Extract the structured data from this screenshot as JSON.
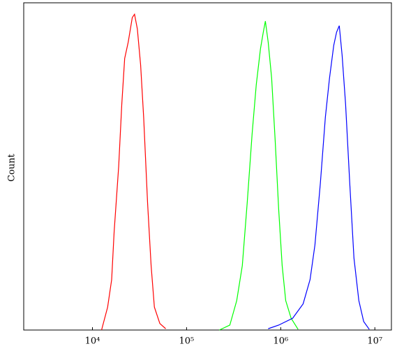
{
  "chart_data": {
    "type": "line",
    "y_label": "Count",
    "x_scale": "log",
    "xlim": [
      1862,
      15000000
    ],
    "ylim": [
      0,
      100
    ],
    "xticks": [
      {
        "value": 10000,
        "label": "10⁴"
      },
      {
        "value": 100000,
        "label": "10⁵"
      },
      {
        "value": 1000000,
        "label": "10⁶"
      },
      {
        "value": 10000000,
        "label": "10⁷"
      }
    ],
    "series": [
      {
        "color": "#ff0000",
        "x": [
          12500,
          14500,
          16000,
          17000,
          19000,
          20500,
          22000,
          24000,
          26500,
          28000,
          30000,
          32500,
          35000,
          38500,
          42000,
          45500,
          52000,
          60000
        ],
        "values": [
          0,
          7,
          15.4,
          30,
          50,
          69,
          83,
          88,
          95.5,
          96.5,
          92,
          81,
          65,
          39,
          19.7,
          7,
          2,
          0.4
        ]
      },
      {
        "color": "#00ff00",
        "x": [
          223000,
          288000,
          341000,
          391000,
          441000,
          497000,
          550000,
          610000,
          653000,
          687000,
          736000,
          801000,
          873000,
          951000,
          1036000,
          1130000,
          1290000,
          1530000
        ],
        "values": [
          0,
          1.5,
          9,
          19.7,
          39,
          60,
          75,
          86,
          91,
          94.4,
          88,
          77,
          58,
          37,
          19.7,
          9,
          3.6,
          0.2
        ]
      },
      {
        "color": "#0000ff",
        "x": [
          736000,
          951000,
          1340000,
          1730000,
          2050000,
          2310000,
          2640000,
          2980000,
          3300000,
          3660000,
          3920000,
          4190000,
          4490000,
          4890000,
          5410000,
          6000000,
          6760000,
          7610000,
          8730000
        ],
        "values": [
          0.4,
          1.5,
          3.6,
          8,
          15.4,
          26,
          45,
          65,
          77,
          87,
          91,
          93,
          84,
          69,
          45,
          22,
          9,
          2.6,
          0.2
        ]
      }
    ]
  }
}
